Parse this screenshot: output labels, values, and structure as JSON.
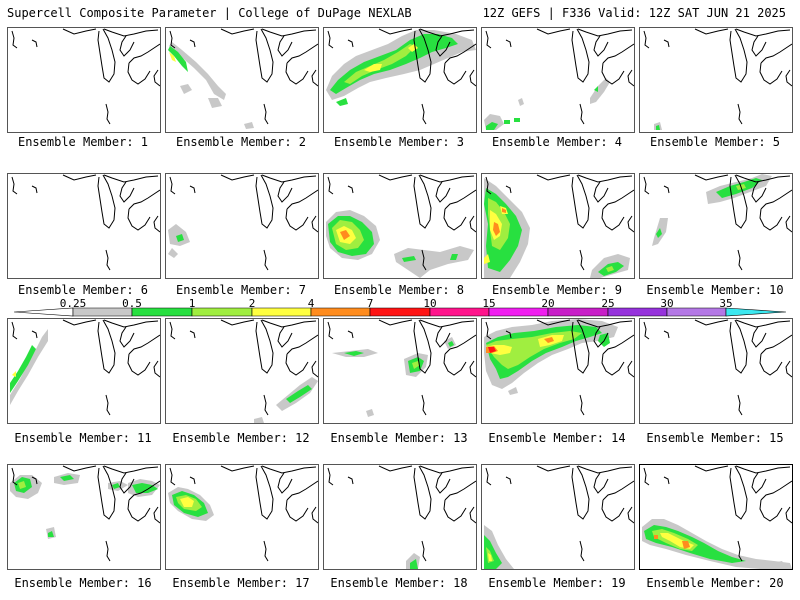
{
  "header": {
    "left": "Supercell Composite Parameter | College of DuPage NEXLAB",
    "right": "12Z GEFS | F336 Valid: 12Z SAT JUN 21 2025"
  },
  "colorbar": {
    "labels": [
      "0.25",
      "0.5",
      "1",
      "2",
      "4",
      "7",
      "10",
      "15",
      "20",
      "25",
      "30",
      "35"
    ],
    "colors": [
      "#ffffff",
      "#c8c8c8",
      "#28e040",
      "#a0ee40",
      "#ffff40",
      "#ff8c1e",
      "#ff1414",
      "#ff148c",
      "#f01ef0",
      "#c81ec8",
      "#9632dc",
      "#b478e6",
      "#3ce8f0"
    ]
  },
  "members": [
    {
      "label": "Ensemble Member: 1"
    },
    {
      "label": "Ensemble Member: 2"
    },
    {
      "label": "Ensemble Member: 3"
    },
    {
      "label": "Ensemble Member: 4"
    },
    {
      "label": "Ensemble Member: 5"
    },
    {
      "label": "Ensemble Member: 6"
    },
    {
      "label": "Ensemble Member: 7"
    },
    {
      "label": "Ensemble Member: 8"
    },
    {
      "label": "Ensemble Member: 9"
    },
    {
      "label": "Ensemble Member: 10"
    },
    {
      "label": "Ensemble Member: 11"
    },
    {
      "label": "Ensemble Member: 12"
    },
    {
      "label": "Ensemble Member: 13"
    },
    {
      "label": "Ensemble Member: 14"
    },
    {
      "label": "Ensemble Member: 15"
    },
    {
      "label": "Ensemble Member: 16"
    },
    {
      "label": "Ensemble Member: 17"
    },
    {
      "label": "Ensemble Member: 18"
    },
    {
      "label": "Ensemble Member: 19"
    },
    {
      "label": "Ensemble Member: 20"
    }
  ]
}
